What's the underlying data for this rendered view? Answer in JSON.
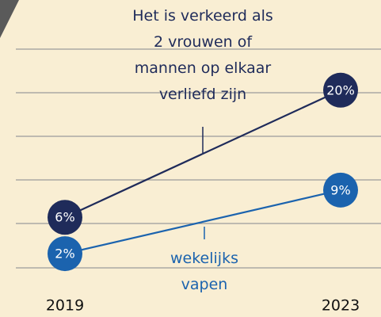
{
  "chart_data": {
    "type": "slope",
    "categories": [
      "2019",
      "2023"
    ],
    "ylim": [
      0,
      25
    ],
    "series": [
      {
        "name": "Het is verkeerd als 2 vrouwen of mannen op elkaar verliefd zijn",
        "color": "#1f2b5a",
        "values": [
          6,
          20
        ],
        "value_labels": [
          "6%",
          "20%"
        ]
      },
      {
        "name": "wekelijks vapen",
        "color": "#1b63ae",
        "values": [
          2,
          9
        ],
        "value_labels": [
          "2%",
          "9%"
        ]
      }
    ]
  }
}
